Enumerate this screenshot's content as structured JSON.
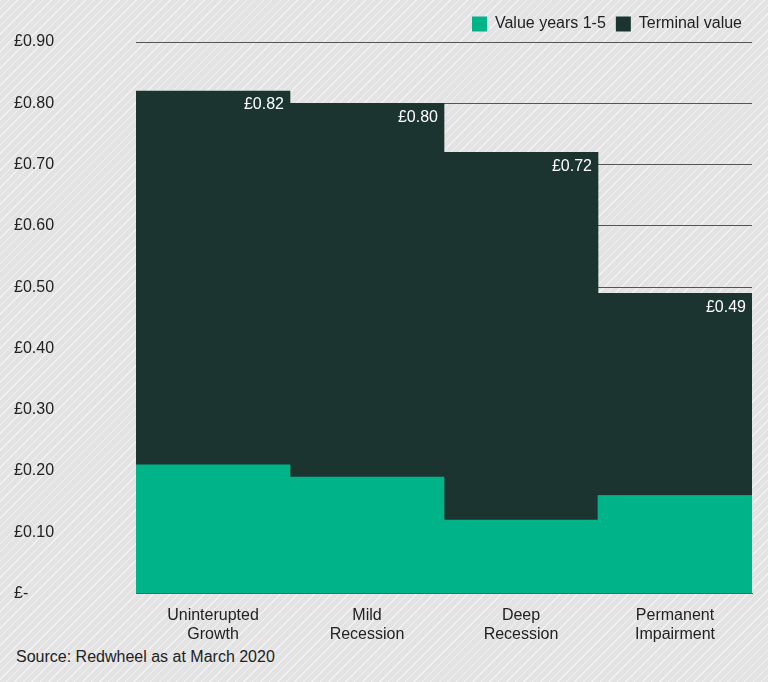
{
  "chart_data": {
    "type": "bar",
    "categories": [
      "Uninterupted Growth",
      "Mild Recession",
      "Deep Recession",
      "Permanent Impairment"
    ],
    "series": [
      {
        "name": "Value years 1-5",
        "color": "#00b388",
        "values": [
          0.21,
          0.19,
          0.12,
          0.16
        ]
      },
      {
        "name": "Terminal value",
        "color": "#1b3430",
        "values": [
          0.61,
          0.61,
          0.6,
          0.33
        ]
      }
    ],
    "totals": [
      0.82,
      0.8,
      0.72,
      0.49
    ],
    "total_labels": [
      "£0.82",
      "£0.80",
      "£0.72",
      "£0.49"
    ],
    "ylim": [
      0,
      0.9
    ],
    "yticks": [
      {
        "value": 0,
        "label": "£-"
      },
      {
        "value": 0.1,
        "label": "£0.10"
      },
      {
        "value": 0.2,
        "label": "£0.20"
      },
      {
        "value": 0.3,
        "label": "£0.30"
      },
      {
        "value": 0.4,
        "label": "£0.40"
      },
      {
        "value": 0.5,
        "label": "£0.50"
      },
      {
        "value": 0.6,
        "label": "£0.60"
      },
      {
        "value": 0.7,
        "label": "£0.70"
      },
      {
        "value": 0.8,
        "label": "£0.80"
      },
      {
        "value": 0.9,
        "label": "£0.90"
      }
    ],
    "stacked": true,
    "grid": true,
    "legend": "top-right",
    "source": "Source: Redwheel as at March 2020"
  }
}
